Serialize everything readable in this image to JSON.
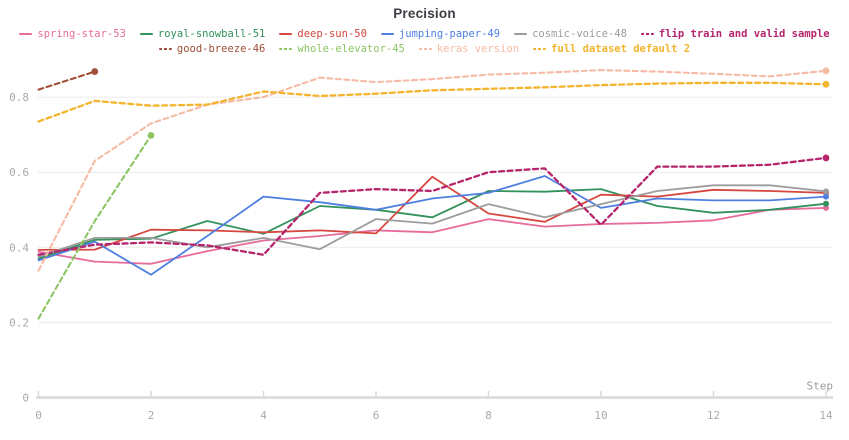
{
  "chart_data": {
    "type": "line",
    "title": "Precision",
    "xlabel": "Step",
    "x_ticks": [
      0,
      2,
      4,
      6,
      8,
      10,
      12,
      14
    ],
    "x_tick_labels": [
      "0",
      "2",
      "4",
      "6",
      "8",
      "10",
      "12",
      "14"
    ],
    "y_ticks": [
      0,
      0.2,
      0.4,
      0.6,
      0.8
    ],
    "y_tick_labels": [
      "0",
      "0.2",
      "0.4",
      "0.6",
      "0.8"
    ],
    "xlim": [
      0,
      14
    ],
    "ylim": [
      0,
      0.9
    ],
    "grid": true,
    "legend_position": "top",
    "series": [
      {
        "name": "spring-star-53",
        "color": "#e86b9d",
        "dashed": false,
        "bold": false,
        "x": [
          0,
          1,
          2,
          3,
          4,
          5,
          6,
          7,
          8,
          9,
          10,
          11,
          12,
          13,
          14
        ],
        "values": [
          0.388,
          0.362,
          0.356,
          0.39,
          0.418,
          0.43,
          0.445,
          0.44,
          0.475,
          0.455,
          0.462,
          0.465,
          0.472,
          0.5,
          0.505
        ]
      },
      {
        "name": "royal-snowball-51",
        "color": "#33915b",
        "dashed": false,
        "bold": false,
        "x": [
          0,
          1,
          2,
          3,
          4,
          5,
          6,
          7,
          8,
          9,
          10,
          11,
          12,
          13,
          14
        ],
        "values": [
          0.37,
          0.42,
          0.423,
          0.47,
          0.436,
          0.51,
          0.5,
          0.48,
          0.55,
          0.548,
          0.555,
          0.51,
          0.492,
          0.5,
          0.516
        ]
      },
      {
        "name": "deep-sun-50",
        "color": "#d6473f",
        "dashed": false,
        "bold": false,
        "x": [
          0,
          1,
          2,
          3,
          4,
          5,
          6,
          7,
          8,
          9,
          10,
          11,
          12,
          13,
          14
        ],
        "values": [
          0.393,
          0.394,
          0.447,
          0.445,
          0.44,
          0.445,
          0.437,
          0.588,
          0.49,
          0.468,
          0.54,
          0.535,
          0.553,
          0.55,
          0.545
        ]
      },
      {
        "name": "jumping-paper-49",
        "color": "#4f7fe0",
        "dashed": false,
        "bold": false,
        "x": [
          0,
          1,
          2,
          3,
          4,
          5,
          6,
          7,
          8,
          9,
          10,
          11,
          12,
          13,
          14
        ],
        "values": [
          0.365,
          0.415,
          0.327,
          0.43,
          0.535,
          0.52,
          0.5,
          0.53,
          0.545,
          0.59,
          0.505,
          0.53,
          0.525,
          0.525,
          0.535
        ]
      },
      {
        "name": "cosmic-voice-48",
        "color": "#9d9d9d",
        "dashed": false,
        "bold": false,
        "x": [
          0,
          1,
          2,
          3,
          4,
          5,
          6,
          7,
          8,
          9,
          10,
          11,
          12,
          13,
          14
        ],
        "values": [
          0.375,
          0.425,
          0.425,
          0.4,
          0.425,
          0.395,
          0.475,
          0.463,
          0.515,
          0.48,
          0.515,
          0.55,
          0.565,
          0.565,
          0.549
        ]
      },
      {
        "name": "flip train and valid sample",
        "color": "#b5246c",
        "dashed": true,
        "bold": true,
        "x": [
          0,
          1,
          2,
          3,
          4,
          5,
          6,
          7,
          8,
          9,
          10,
          11,
          12,
          13,
          14
        ],
        "values": [
          0.38,
          0.407,
          0.413,
          0.405,
          0.38,
          0.545,
          0.555,
          0.55,
          0.6,
          0.61,
          0.46,
          0.615,
          0.615,
          0.62,
          0.638
        ]
      },
      {
        "name": "good-breeze-46",
        "color": "#a04f38",
        "dashed": true,
        "bold": false,
        "x": [
          0,
          1
        ],
        "values": [
          0.82,
          0.868
        ]
      },
      {
        "name": "whole-elevator-45",
        "color": "#8cc564",
        "dashed": true,
        "bold": false,
        "x": [
          0,
          1,
          2
        ],
        "values": [
          0.21,
          0.47,
          0.698
        ]
      },
      {
        "name": "keras version",
        "color": "#f6bba4",
        "dashed": true,
        "bold": false,
        "x": [
          0,
          1,
          2,
          3,
          4,
          5,
          6,
          7,
          8,
          9,
          10,
          11,
          12,
          13,
          14
        ],
        "values": [
          0.338,
          0.63,
          0.73,
          0.78,
          0.8,
          0.852,
          0.84,
          0.848,
          0.86,
          0.865,
          0.872,
          0.868,
          0.862,
          0.855,
          0.87
        ]
      },
      {
        "name": "full dataset default 2",
        "color": "#f3b52f",
        "dashed": true,
        "bold": true,
        "x": [
          0,
          1,
          2,
          3,
          4,
          5,
          6,
          7,
          8,
          9,
          10,
          11,
          12,
          13,
          14
        ],
        "values": [
          0.735,
          0.79,
          0.777,
          0.78,
          0.815,
          0.803,
          0.809,
          0.818,
          0.822,
          0.826,
          0.832,
          0.836,
          0.838,
          0.838,
          0.834
        ]
      }
    ]
  },
  "legend": {
    "rows": [
      [
        0,
        1,
        2,
        3,
        4,
        5
      ],
      [
        6,
        7,
        8,
        9
      ]
    ]
  }
}
